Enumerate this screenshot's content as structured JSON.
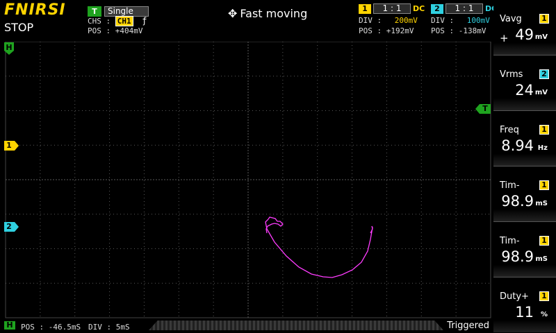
{
  "header": {
    "brand": "FNIRSI",
    "run_state": "STOP",
    "status": "Fast moving",
    "move_icon": "move-arrows-icon"
  },
  "trigger": {
    "badge": "T",
    "mode": "Single",
    "chs_label": "CHS :",
    "chs_channel": "CH1",
    "edge_icon": "rising-edge-icon",
    "edge_glyph": "ƒ",
    "pos_label": "POS :",
    "pos_value": "+404mV"
  },
  "channels": [
    {
      "badge": "1",
      "ratio": "1 : 1",
      "coupling": "DC",
      "div_label": "DIV :",
      "div_value": "200mV",
      "pos_label": "POS :",
      "pos_value": "+192mV",
      "color": "#ffd400"
    },
    {
      "badge": "2",
      "ratio": "1 : 1",
      "coupling": "DC",
      "div_label": "DIV :",
      "div_value": "100mV",
      "pos_label": "POS :",
      "pos_value": "-138mV",
      "color": "#2fd0e0"
    }
  ],
  "markers": {
    "horizontal": "H",
    "trigger_level": "T",
    "ch1": "1",
    "ch2": "2"
  },
  "trace": {
    "color": "#ff3cff"
  },
  "measurements": [
    {
      "name": "Vavg",
      "source": "1",
      "sign": "+",
      "value": "49",
      "unit": "mV"
    },
    {
      "name": "Vrms",
      "source": "2",
      "sign": "",
      "value": "24",
      "unit": "mV"
    },
    {
      "name": "Freq",
      "source": "1",
      "sign": "",
      "value": "8.94",
      "unit": "Hz"
    },
    {
      "name": "Tim-",
      "source": "1",
      "sign": "",
      "value": "98.9",
      "unit": "mS"
    },
    {
      "name": "Tim-",
      "source": "1",
      "sign": "",
      "value": "98.9",
      "unit": "mS"
    },
    {
      "name": "Duty+",
      "source": "1",
      "sign": "",
      "value": "11",
      "unit": "%"
    }
  ],
  "timebase": {
    "badge": "H",
    "pos_label": "POS :",
    "pos_value": "-46.5mS",
    "div_label": "DIV :",
    "div_value": "5mS",
    "status": "Triggered"
  },
  "colors": {
    "ch1": "#ffd400",
    "ch2": "#2fd0e0",
    "trigger": "#1fa31f",
    "trace": "#ff3cff"
  }
}
